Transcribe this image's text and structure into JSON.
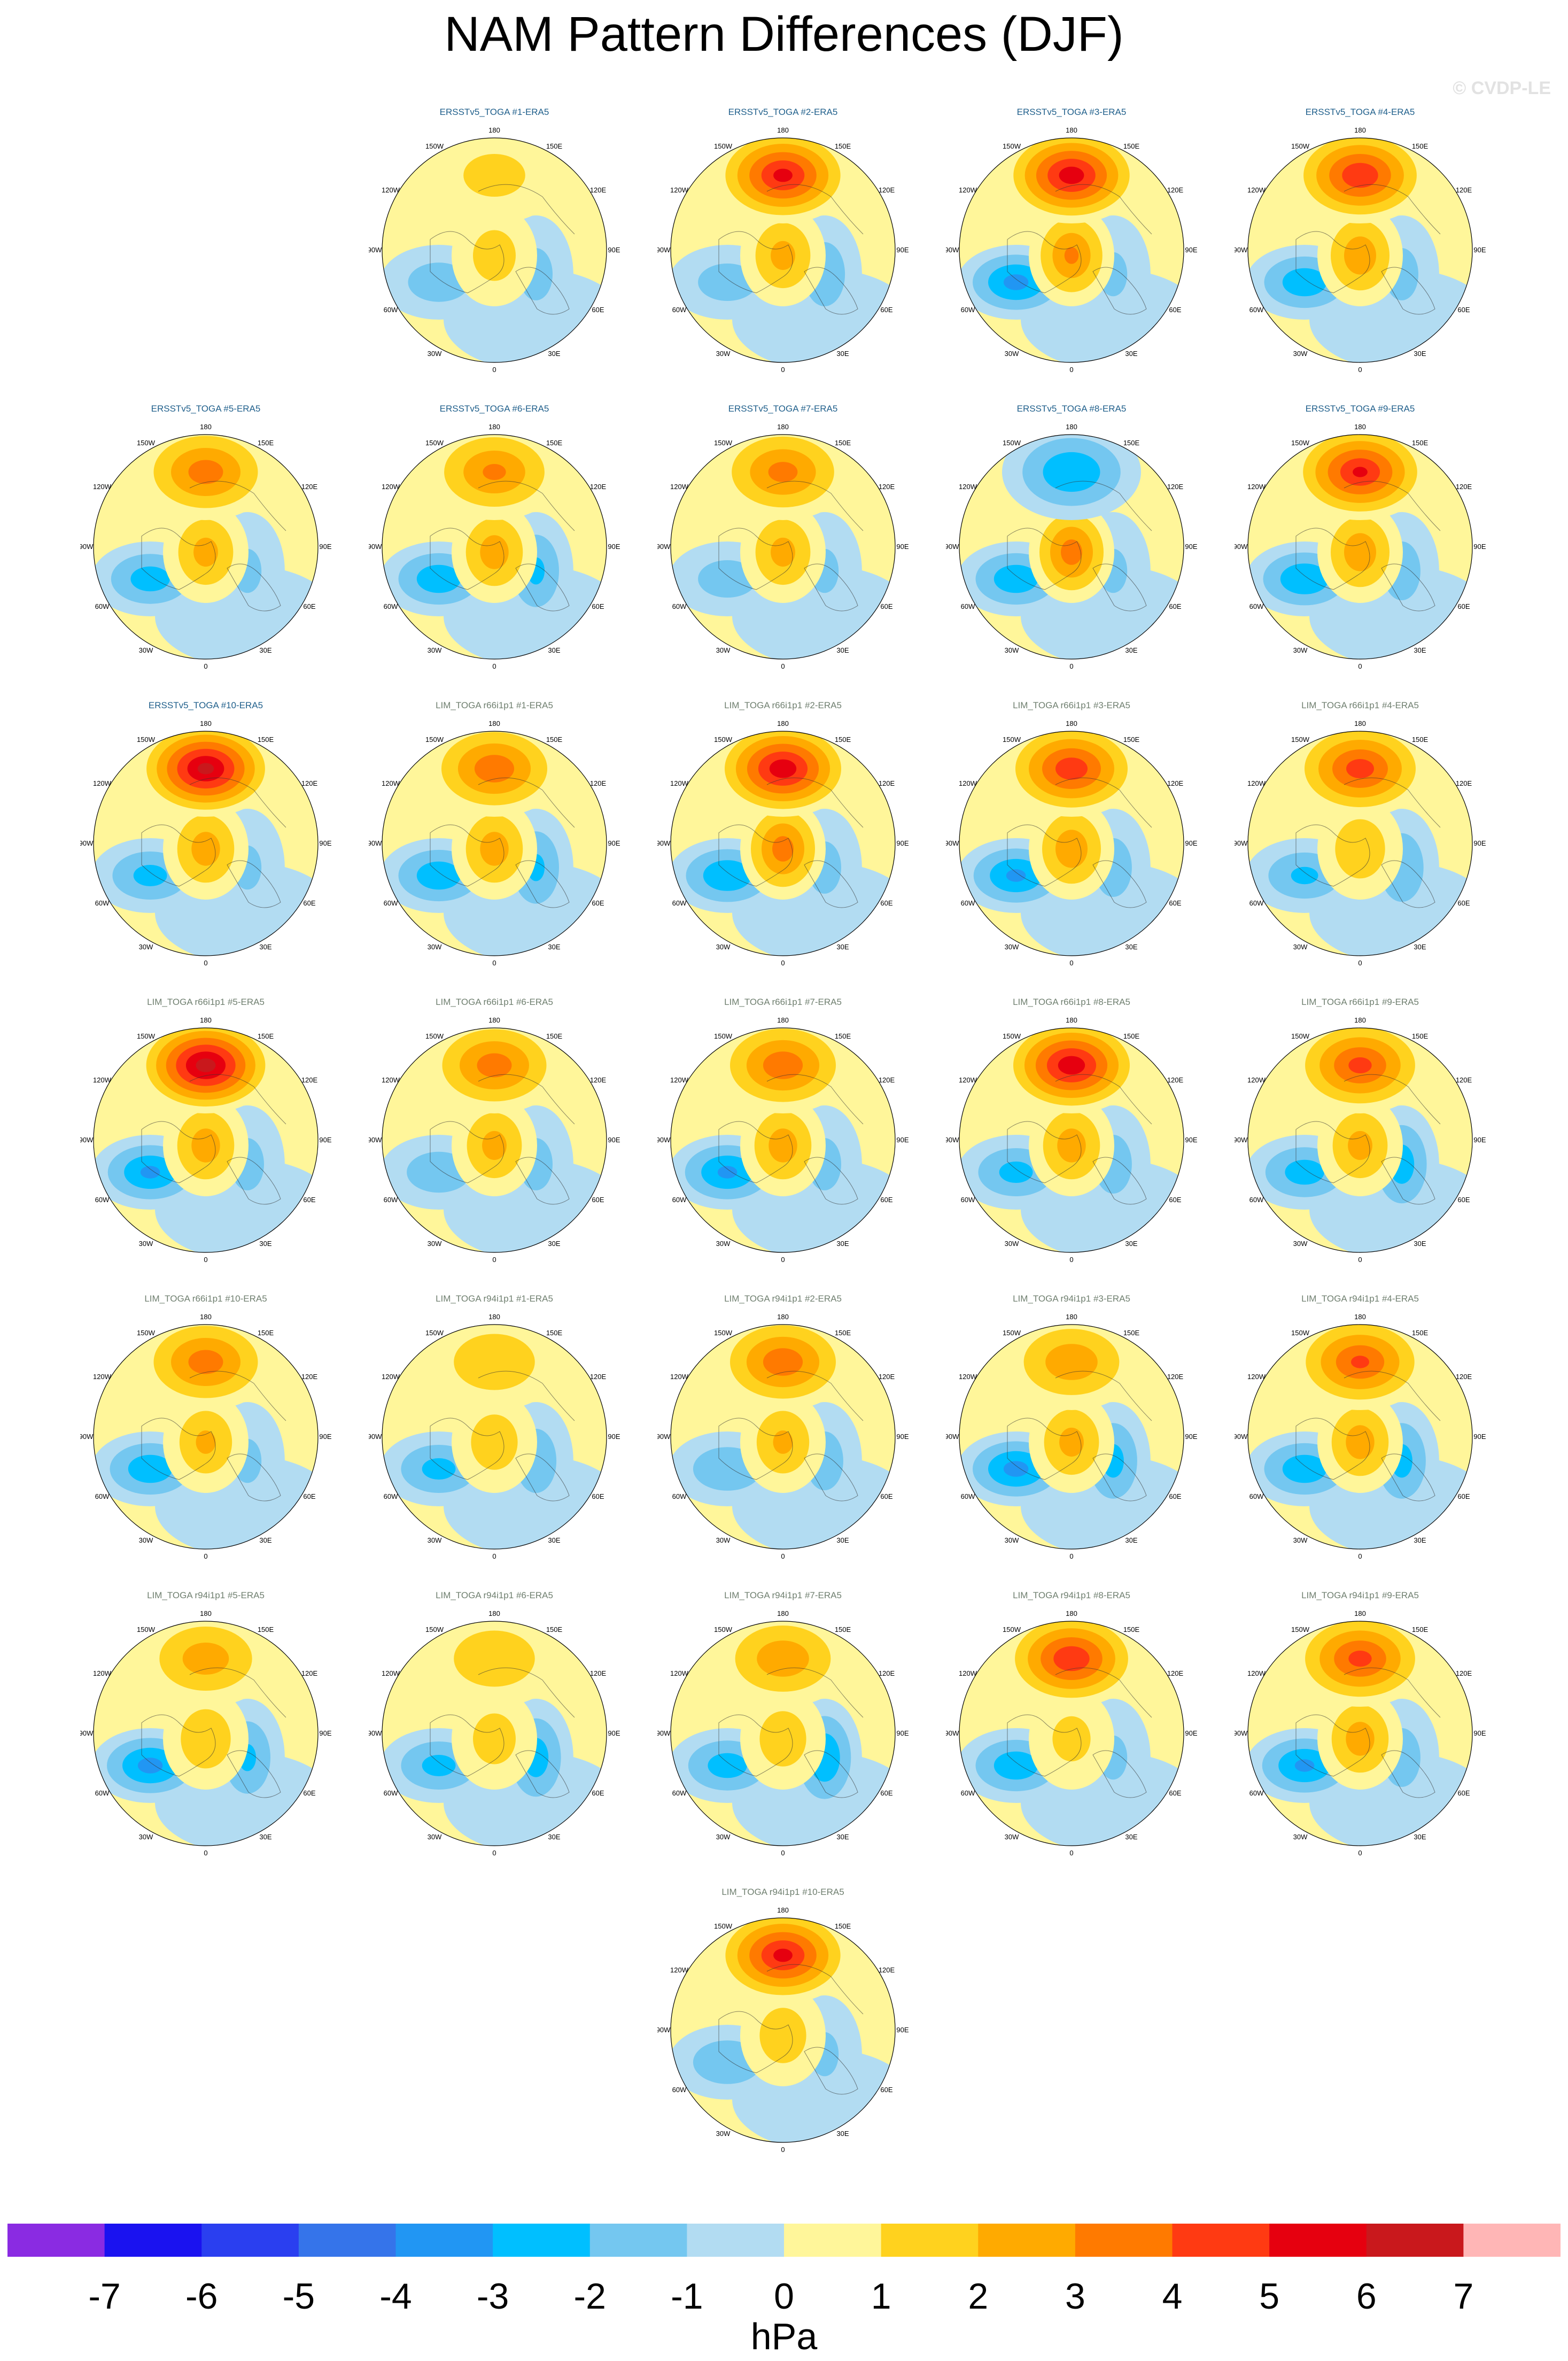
{
  "title": "NAM Pattern Differences (DJF)",
  "watermark": "© CVDP-LE",
  "units": "hPa",
  "colorbar": {
    "colors": [
      "#8a2be2",
      "#1a12f0",
      "#2a3ff0",
      "#3574ea",
      "#2196f3",
      "#00bfff",
      "#74c7f0",
      "#b2dcf2",
      "#fff69a",
      "#ffd21e",
      "#ffaa00",
      "#ff7a00",
      "#ff3a12",
      "#e6000f",
      "#c9181c",
      "#ffb6b6"
    ],
    "labels": [
      "-7",
      "-6",
      "-5",
      "-4",
      "-3",
      "-2",
      "-1",
      "0",
      "1",
      "2",
      "3",
      "4",
      "5",
      "6",
      "7"
    ]
  },
  "lon_labels": {
    "top": "180",
    "tl": "150W",
    "tr": "150E",
    "ul": "120W",
    "ur": "120E",
    "ml": "90W",
    "mr": "90E",
    "ll": "60W",
    "lr": "60E",
    "bl": "30W",
    "br": "30E",
    "bottom": "0"
  },
  "panels": [
    {
      "title": "ERSSTv5_TOGA #1-ERA5",
      "group": "ersst",
      "pacific": 1.2,
      "nam_arctic": 1.4,
      "atlantic_low": -1.5,
      "siberia": -1.2
    },
    {
      "title": "ERSSTv5_TOGA #2-ERA5",
      "group": "ersst",
      "pacific": 5.2,
      "nam_arctic": 2.2,
      "atlantic_low": -1.4,
      "siberia": -1.6
    },
    {
      "title": "ERSSTv5_TOGA #3-ERA5",
      "group": "ersst",
      "pacific": 5.5,
      "nam_arctic": 3.0,
      "atlantic_low": -3.2,
      "siberia": -1.0
    },
    {
      "title": "ERSSTv5_TOGA #4-ERA5",
      "group": "ersst",
      "pacific": 4.8,
      "nam_arctic": 2.6,
      "atlantic_low": -2.6,
      "siberia": -1.2
    },
    {
      "title": "ERSSTv5_TOGA #5-ERA5",
      "group": "ersst",
      "pacific": 3.4,
      "nam_arctic": 2.2,
      "atlantic_low": -2.4,
      "siberia": -1.0
    },
    {
      "title": "ERSSTv5_TOGA #6-ERA5",
      "group": "ersst",
      "pacific": 3.0,
      "nam_arctic": 2.4,
      "atlantic_low": -2.6,
      "siberia": -2.0
    },
    {
      "title": "ERSSTv5_TOGA #7-ERA5",
      "group": "ersst",
      "pacific": 3.2,
      "nam_arctic": 2.2,
      "atlantic_low": -1.4,
      "siberia": -1.0
    },
    {
      "title": "ERSSTv5_TOGA #8-ERA5",
      "group": "ersst",
      "pacific": -2.8,
      "nam_arctic": 3.4,
      "atlantic_low": -2.6,
      "siberia": -1.0
    },
    {
      "title": "ERSSTv5_TOGA #9-ERA5",
      "group": "ersst",
      "pacific": 5.0,
      "nam_arctic": 2.6,
      "atlantic_low": -2.8,
      "siberia": -1.4
    },
    {
      "title": "ERSSTv5_TOGA #10-ERA5",
      "group": "ersst",
      "pacific": 6.2,
      "nam_arctic": 2.4,
      "atlantic_low": -2.2,
      "siberia": -1.0
    },
    {
      "title": "LIM_TOGA r66i1p1 #1-ERA5",
      "group": "lim",
      "pacific": 3.6,
      "nam_arctic": 2.4,
      "atlantic_low": -2.6,
      "siberia": -2.0
    },
    {
      "title": "LIM_TOGA r66i1p1 #2-ERA5",
      "group": "lim",
      "pacific": 5.6,
      "nam_arctic": 3.4,
      "atlantic_low": -2.8,
      "siberia": -1.2
    },
    {
      "title": "LIM_TOGA r66i1p1 #3-ERA5",
      "group": "lim",
      "pacific": 4.6,
      "nam_arctic": 2.6,
      "atlantic_low": -3.0,
      "siberia": -1.4
    },
    {
      "title": "LIM_TOGA r66i1p1 #4-ERA5",
      "group": "lim",
      "pacific": 4.4,
      "nam_arctic": 1.8,
      "atlantic_low": -2.0,
      "siberia": -1.8
    },
    {
      "title": "LIM_TOGA r66i1p1 #5-ERA5",
      "group": "lim",
      "pacific": 6.4,
      "nam_arctic": 2.4,
      "atlantic_low": -3.0,
      "siberia": -1.2
    },
    {
      "title": "LIM_TOGA r66i1p1 #6-ERA5",
      "group": "lim",
      "pacific": 3.4,
      "nam_arctic": 2.2,
      "atlantic_low": -1.6,
      "siberia": -1.2
    },
    {
      "title": "LIM_TOGA r66i1p1 #7-ERA5",
      "group": "lim",
      "pacific": 3.6,
      "nam_arctic": 2.4,
      "atlantic_low": -3.0,
      "siberia": -1.2
    },
    {
      "title": "LIM_TOGA r66i1p1 #8-ERA5",
      "group": "lim",
      "pacific": 5.6,
      "nam_arctic": 2.4,
      "atlantic_low": -2.2,
      "siberia": -1.4
    },
    {
      "title": "LIM_TOGA r66i1p1 #9-ERA5",
      "group": "lim",
      "pacific": 4.2,
      "nam_arctic": 2.2,
      "atlantic_low": -2.4,
      "siberia": -2.4
    },
    {
      "title": "LIM_TOGA r66i1p1 #10-ERA5",
      "group": "lim",
      "pacific": 3.4,
      "nam_arctic": 2.0,
      "atlantic_low": -2.6,
      "siberia": -1.0
    },
    {
      "title": "LIM_TOGA r94i1p1 #1-ERA5",
      "group": "lim",
      "pacific": 1.8,
      "nam_arctic": 1.6,
      "atlantic_low": -2.2,
      "siberia": -1.6
    },
    {
      "title": "LIM_TOGA r94i1p1 #2-ERA5",
      "group": "lim",
      "pacific": 3.6,
      "nam_arctic": 2.0,
      "atlantic_low": -1.8,
      "siberia": -1.4
    },
    {
      "title": "LIM_TOGA r94i1p1 #3-ERA5",
      "group": "lim",
      "pacific": 2.6,
      "nam_arctic": 2.2,
      "atlantic_low": -3.2,
      "siberia": -2.2
    },
    {
      "title": "LIM_TOGA r94i1p1 #4-ERA5",
      "group": "lim",
      "pacific": 4.0,
      "nam_arctic": 2.4,
      "atlantic_low": -2.6,
      "siberia": -2.2
    },
    {
      "title": "LIM_TOGA r94i1p1 #5-ERA5",
      "group": "lim",
      "pacific": 2.4,
      "nam_arctic": 1.8,
      "atlantic_low": -3.2,
      "siberia": -2.0
    },
    {
      "title": "LIM_TOGA r94i1p1 #6-ERA5",
      "group": "lim",
      "pacific": 1.8,
      "nam_arctic": 1.4,
      "atlantic_low": -2.2,
      "siberia": -2.4
    },
    {
      "title": "LIM_TOGA r94i1p1 #7-ERA5",
      "group": "lim",
      "pacific": 2.6,
      "nam_arctic": 1.6,
      "atlantic_low": -2.4,
      "siberia": -2.8
    },
    {
      "title": "LIM_TOGA r94i1p1 #8-ERA5",
      "group": "lim",
      "pacific": 4.8,
      "nam_arctic": 1.2,
      "atlantic_low": -2.6,
      "siberia": -1.0
    },
    {
      "title": "LIM_TOGA r94i1p1 #9-ERA5",
      "group": "lim",
      "pacific": 4.2,
      "nam_arctic": 2.4,
      "atlantic_low": -3.0,
      "siberia": -1.4
    },
    {
      "title": "LIM_TOGA r94i1p1 #10-ERA5",
      "group": "lim",
      "pacific": 5.2,
      "nam_arctic": 1.6,
      "atlantic_low": -1.8,
      "siberia": -1.0
    }
  ]
}
